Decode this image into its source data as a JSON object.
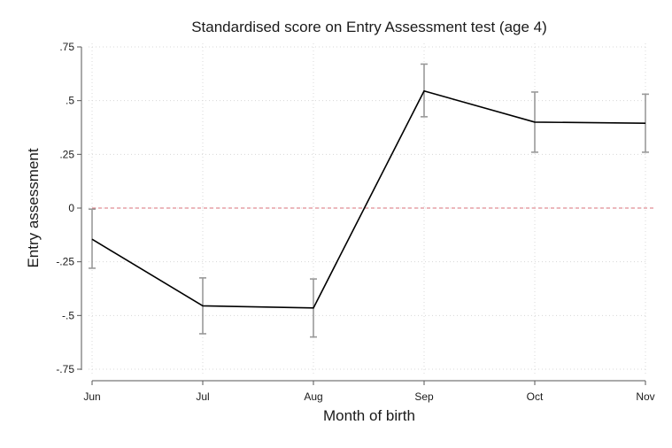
{
  "chart_data": {
    "type": "line",
    "title": "Standardised score on Entry Assessment test (age 4)",
    "xlabel": "Month of birth",
    "ylabel": "Entry assessment",
    "categories": [
      "Jun",
      "Jul",
      "Aug",
      "Sep",
      "Oct",
      "Nov"
    ],
    "yticks": [
      {
        "value": 0.75,
        "label": ".75"
      },
      {
        "value": 0.5,
        "label": ".5"
      },
      {
        "value": 0.25,
        "label": ".25"
      },
      {
        "value": 0,
        "label": "0"
      },
      {
        "value": -0.25,
        "label": "-.25"
      },
      {
        "value": -0.5,
        "label": "-.5"
      },
      {
        "value": -0.75,
        "label": "-.75"
      }
    ],
    "ylim": [
      -0.77,
      0.77
    ],
    "series": [
      {
        "values": [
          -0.145,
          -0.455,
          -0.465,
          0.545,
          0.4,
          0.395
        ],
        "ci_low": [
          -0.28,
          -0.585,
          -0.6,
          0.425,
          0.26,
          0.26
        ],
        "ci_high": [
          -0.005,
          -0.325,
          -0.33,
          0.67,
          0.54,
          0.53
        ],
        "color": "#000000"
      }
    ],
    "reference_line": {
      "value": 0,
      "color": "#d9707a",
      "style": "dashed"
    },
    "error_bar_color": "#999999",
    "grid": true
  }
}
